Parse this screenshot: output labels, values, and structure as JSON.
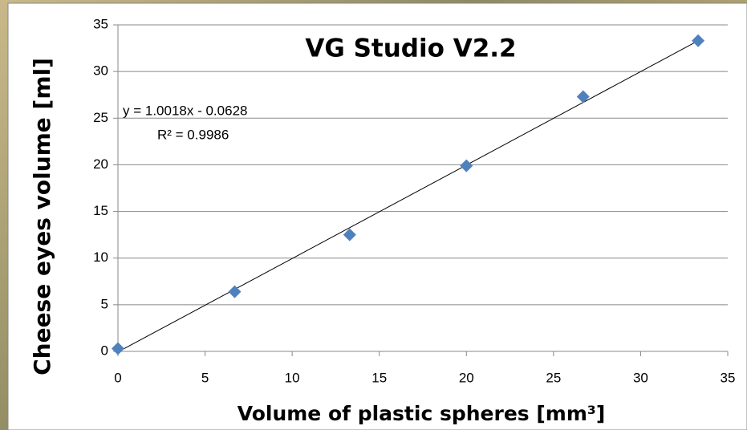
{
  "chart_data": {
    "type": "scatter",
    "title": "VG Studio V2.2",
    "x_label": "Volume of plastic spheres [mm³]",
    "y_label": "Cheese eyes volume [ml]",
    "series": [
      {
        "color": "#4f81bd",
        "x": [
          0,
          6.7,
          13.3,
          20,
          26.7,
          33.3
        ],
        "values": [
          0.3,
          6.4,
          12.5,
          19.9,
          27.3,
          33.3
        ]
      }
    ],
    "trendline": {
      "equation": "y = 1.0018x - 0.0628",
      "r2_label": "R² = 0.9986",
      "slope": 1.0018,
      "intercept": -0.0628,
      "color": "#000000"
    },
    "xlim": [
      0,
      35
    ],
    "xticks": [
      0,
      5,
      10,
      15,
      20,
      25,
      30,
      35
    ],
    "ylim": [
      0,
      35
    ],
    "yticks": [
      0,
      5,
      10,
      15,
      20,
      25,
      30,
      35
    ],
    "grid": true
  }
}
